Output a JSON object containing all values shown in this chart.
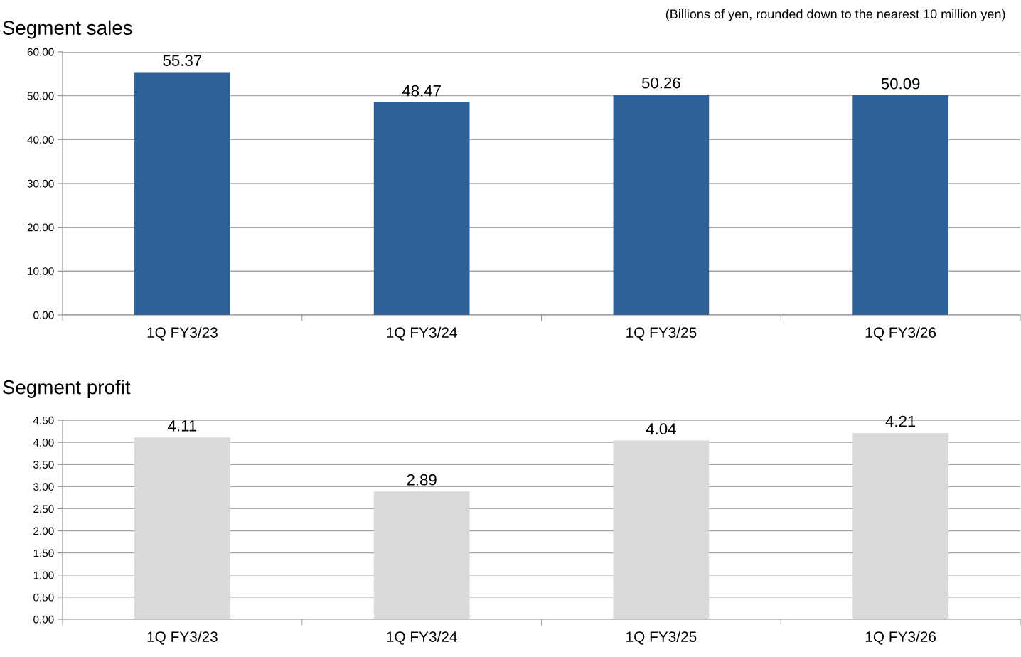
{
  "chart_data": [
    {
      "type": "bar",
      "title": "Segment sales",
      "annotations": [
        "(Billions of yen, rounded down to the nearest 10 million yen)"
      ],
      "categories": [
        "1Q FY3/23",
        "1Q FY3/24",
        "1Q FY3/25",
        "1Q FY3/26"
      ],
      "values": [
        55.37,
        48.47,
        50.26,
        50.09
      ],
      "color": "#2e6099",
      "ylim": [
        0,
        60
      ],
      "yticks": [
        {
          "value": 0,
          "label": "0.00"
        },
        {
          "value": 10,
          "label": "10.00"
        },
        {
          "value": 20,
          "label": "20.00"
        },
        {
          "value": 30,
          "label": "30.00"
        },
        {
          "value": 40,
          "label": "40.00"
        },
        {
          "value": 50,
          "label": "50.00"
        },
        {
          "value": 60,
          "label": "60.00"
        }
      ],
      "grid": "y",
      "data_labels": true
    },
    {
      "type": "bar",
      "title": "Segment profit",
      "categories": [
        "1Q FY3/23",
        "1Q FY3/24",
        "1Q FY3/25",
        "1Q FY3/26"
      ],
      "values": [
        4.11,
        2.89,
        4.04,
        4.21
      ],
      "color": "#d9d9d9",
      "ylim": [
        0,
        4.5
      ],
      "yticks": [
        {
          "value": 0,
          "label": "0.00"
        },
        {
          "value": 0.5,
          "label": "0.50"
        },
        {
          "value": 1,
          "label": "1.00"
        },
        {
          "value": 1.5,
          "label": "1.50"
        },
        {
          "value": 2,
          "label": "2.00"
        },
        {
          "value": 2.5,
          "label": "2.50"
        },
        {
          "value": 3,
          "label": "3.00"
        },
        {
          "value": 3.5,
          "label": "3.50"
        },
        {
          "value": 4,
          "label": "4.00"
        },
        {
          "value": 4.5,
          "label": "4.50"
        }
      ],
      "grid": "y",
      "data_labels": true
    }
  ]
}
